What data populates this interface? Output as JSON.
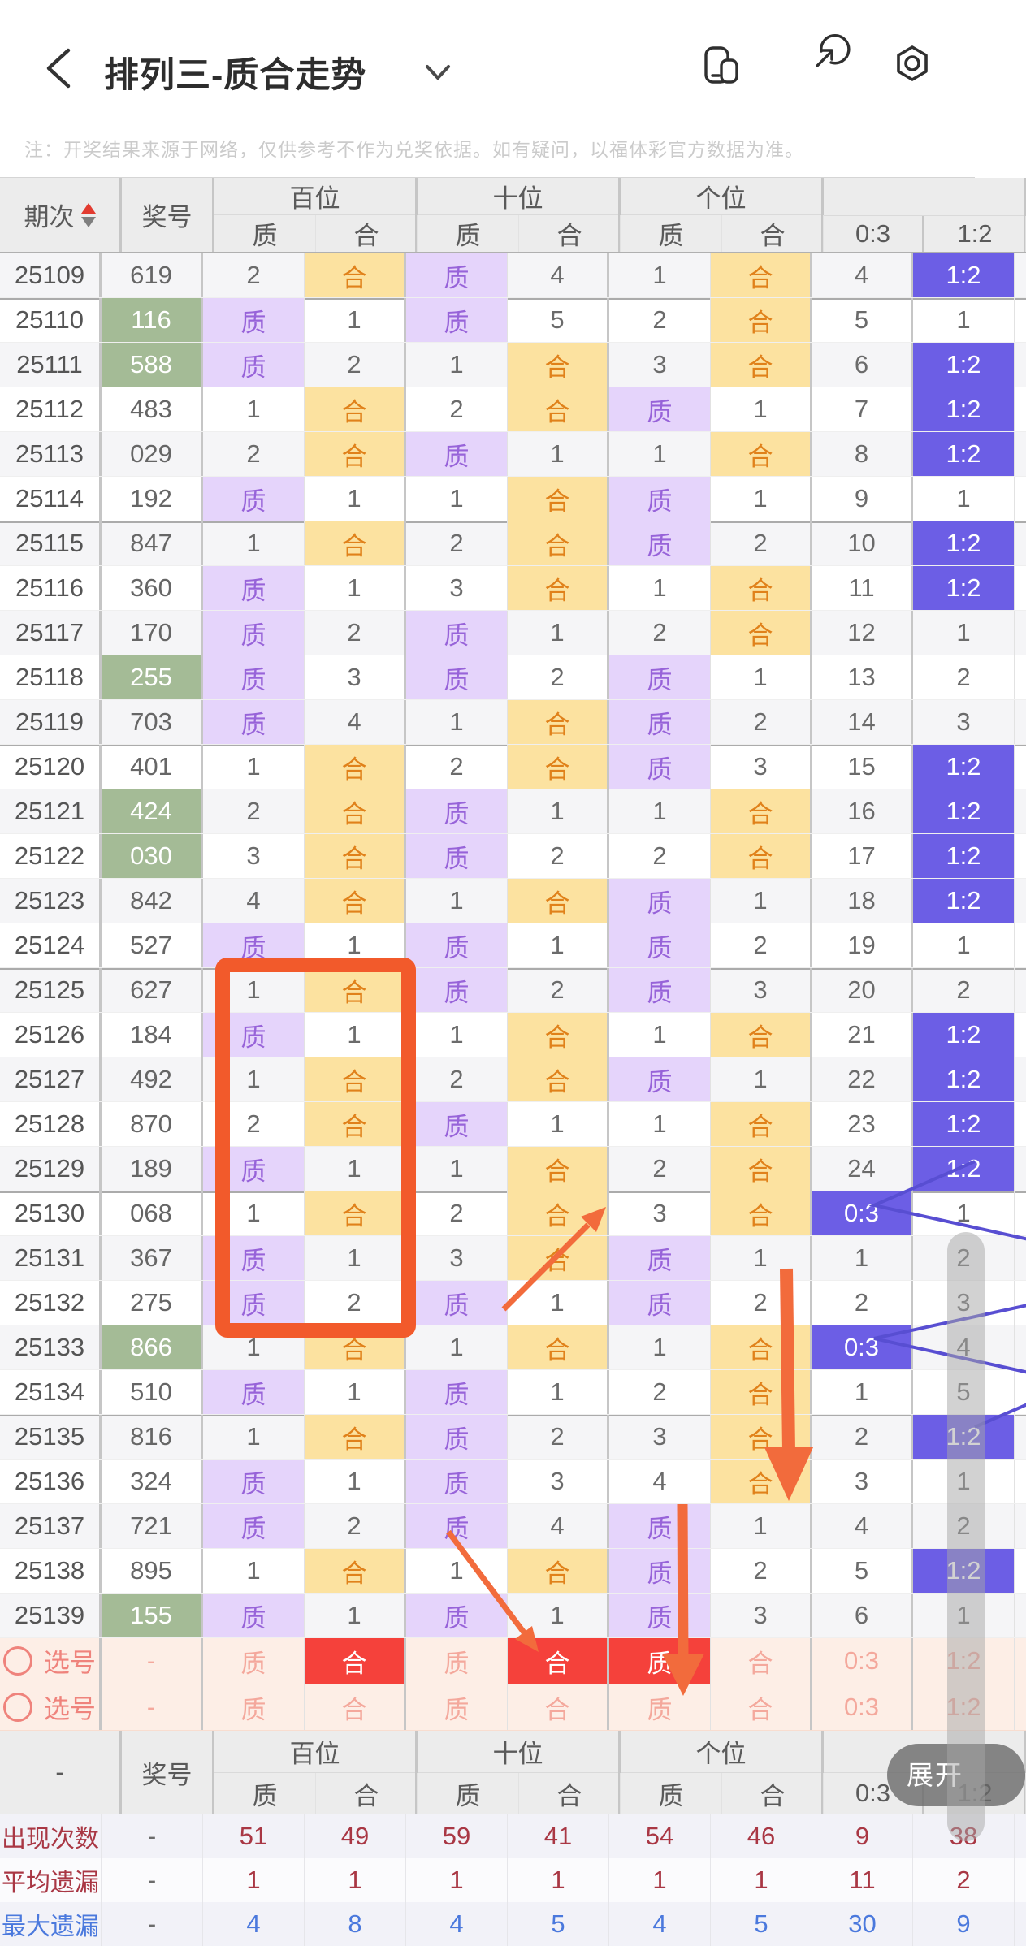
{
  "app": {
    "title": "排列三-质合走势",
    "expand_label": "展开",
    "icons": [
      "back-icon",
      "chevron-down-icon",
      "overlapping-windows-icon",
      "share-icon",
      "settings-nut-icon"
    ]
  },
  "notice": "注：开奖结果来源于网络，仅供参考不作为兑奖依据。如有疑问，以福体彩官方数据为准。",
  "colors": {
    "zhi_purple_bg": "#e5d4fb",
    "zhi_purple_text": "#9763d9",
    "he_orange_bg": "#fce2a0",
    "he_orange_text": "#e0811a",
    "ratio_hit_blue": "#6c5ee5",
    "pair_green": "#a4bb96",
    "select_red": "#f5413b",
    "select_row_pink": "#fdeee6",
    "annotation_orange": "#f25a2b",
    "trend_line_blue": "#584ed2",
    "summary_red": "#a93744",
    "summary_blue": "#4b79dd"
  },
  "table": {
    "header": {
      "period": "期次",
      "number": "奖号",
      "groups": [
        {
          "label": "百位",
          "subs": [
            "质",
            "合"
          ]
        },
        {
          "label": "十位",
          "subs": [
            "质",
            "合"
          ]
        },
        {
          "label": "个位",
          "subs": [
            "质",
            "合"
          ]
        },
        {
          "label": "",
          "subs": [
            "0:3",
            "1:2"
          ]
        }
      ]
    },
    "rows": [
      {
        "period": "25109",
        "number": "619",
        "green": false,
        "cells": [
          "2",
          "合",
          "质",
          "4",
          "1",
          "合",
          "4",
          "1:2"
        ]
      },
      {
        "period": "25110",
        "number": "116",
        "green": true,
        "cells": [
          "质",
          "1",
          "质",
          "5",
          "2",
          "合",
          "5",
          "1"
        ]
      },
      {
        "period": "25111",
        "number": "588",
        "green": true,
        "cells": [
          "质",
          "2",
          "1",
          "合",
          "3",
          "合",
          "6",
          "1:2"
        ]
      },
      {
        "period": "25112",
        "number": "483",
        "green": false,
        "cells": [
          "1",
          "合",
          "2",
          "合",
          "质",
          "1",
          "7",
          "1:2"
        ]
      },
      {
        "period": "25113",
        "number": "029",
        "green": false,
        "cells": [
          "2",
          "合",
          "质",
          "1",
          "1",
          "合",
          "8",
          "1:2"
        ]
      },
      {
        "period": "25114",
        "number": "192",
        "green": false,
        "cells": [
          "质",
          "1",
          "1",
          "合",
          "质",
          "1",
          "9",
          "1"
        ]
      },
      {
        "period": "25115",
        "number": "847",
        "green": false,
        "cells": [
          "1",
          "合",
          "2",
          "合",
          "质",
          "2",
          "10",
          "1:2"
        ]
      },
      {
        "period": "25116",
        "number": "360",
        "green": false,
        "cells": [
          "质",
          "1",
          "3",
          "合",
          "1",
          "合",
          "11",
          "1:2"
        ]
      },
      {
        "period": "25117",
        "number": "170",
        "green": false,
        "cells": [
          "质",
          "2",
          "质",
          "1",
          "2",
          "合",
          "12",
          "1"
        ]
      },
      {
        "period": "25118",
        "number": "255",
        "green": true,
        "cells": [
          "质",
          "3",
          "质",
          "2",
          "质",
          "1",
          "13",
          "2"
        ]
      },
      {
        "period": "25119",
        "number": "703",
        "green": false,
        "cells": [
          "质",
          "4",
          "1",
          "合",
          "质",
          "2",
          "14",
          "3"
        ]
      },
      {
        "period": "25120",
        "number": "401",
        "green": false,
        "cells": [
          "1",
          "合",
          "2",
          "合",
          "质",
          "3",
          "15",
          "1:2"
        ]
      },
      {
        "period": "25121",
        "number": "424",
        "green": true,
        "cells": [
          "2",
          "合",
          "质",
          "1",
          "1",
          "合",
          "16",
          "1:2"
        ]
      },
      {
        "period": "25122",
        "number": "030",
        "green": true,
        "cells": [
          "3",
          "合",
          "质",
          "2",
          "2",
          "合",
          "17",
          "1:2"
        ]
      },
      {
        "period": "25123",
        "number": "842",
        "green": false,
        "cells": [
          "4",
          "合",
          "1",
          "合",
          "质",
          "1",
          "18",
          "1:2"
        ]
      },
      {
        "period": "25124",
        "number": "527",
        "green": false,
        "cells": [
          "质",
          "1",
          "质",
          "1",
          "质",
          "2",
          "19",
          "1"
        ]
      },
      {
        "period": "25125",
        "number": "627",
        "green": false,
        "cells": [
          "1",
          "合",
          "质",
          "2",
          "质",
          "3",
          "20",
          "2"
        ]
      },
      {
        "period": "25126",
        "number": "184",
        "green": false,
        "cells": [
          "质",
          "1",
          "1",
          "合",
          "1",
          "合",
          "21",
          "1:2"
        ]
      },
      {
        "period": "25127",
        "number": "492",
        "green": false,
        "cells": [
          "1",
          "合",
          "2",
          "合",
          "质",
          "1",
          "22",
          "1:2"
        ]
      },
      {
        "period": "25128",
        "number": "870",
        "green": false,
        "cells": [
          "2",
          "合",
          "质",
          "1",
          "1",
          "合",
          "23",
          "1:2"
        ]
      },
      {
        "period": "25129",
        "number": "189",
        "green": false,
        "cells": [
          "质",
          "1",
          "1",
          "合",
          "2",
          "合",
          "24",
          "1:2"
        ]
      },
      {
        "period": "25130",
        "number": "068",
        "green": false,
        "cells": [
          "1",
          "合",
          "2",
          "合",
          "3",
          "合",
          "0:3",
          "1"
        ]
      },
      {
        "period": "25131",
        "number": "367",
        "green": false,
        "cells": [
          "质",
          "1",
          "3",
          "合",
          "质",
          "1",
          "1",
          "2"
        ]
      },
      {
        "period": "25132",
        "number": "275",
        "green": false,
        "cells": [
          "质",
          "2",
          "质",
          "1",
          "质",
          "2",
          "2",
          "3"
        ]
      },
      {
        "period": "25133",
        "number": "866",
        "green": true,
        "cells": [
          "1",
          "合",
          "1",
          "合",
          "1",
          "合",
          "0:3",
          "4"
        ]
      },
      {
        "period": "25134",
        "number": "510",
        "green": false,
        "cells": [
          "质",
          "1",
          "质",
          "1",
          "2",
          "合",
          "1",
          "5"
        ]
      },
      {
        "period": "25135",
        "number": "816",
        "green": false,
        "cells": [
          "1",
          "合",
          "质",
          "2",
          "3",
          "合",
          "2",
          "1:2"
        ]
      },
      {
        "period": "25136",
        "number": "324",
        "green": false,
        "cells": [
          "质",
          "1",
          "质",
          "3",
          "4",
          "合",
          "3",
          "1"
        ]
      },
      {
        "period": "25137",
        "number": "721",
        "green": false,
        "cells": [
          "质",
          "2",
          "质",
          "4",
          "质",
          "1",
          "4",
          "2"
        ]
      },
      {
        "period": "25138",
        "number": "895",
        "green": false,
        "cells": [
          "1",
          "合",
          "1",
          "合",
          "质",
          "2",
          "5",
          "1:2"
        ]
      },
      {
        "period": "25139",
        "number": "155",
        "green": true,
        "cells": [
          "质",
          "1",
          "质",
          "1",
          "质",
          "3",
          "6",
          "1"
        ]
      }
    ],
    "select_rows": [
      {
        "label": "选号",
        "number": "-",
        "cells": [
          "质",
          "合",
          "质",
          "合",
          "质",
          "合",
          "0:3",
          "1:2"
        ],
        "red_indices": [
          1,
          3,
          4
        ]
      },
      {
        "label": "选号",
        "number": "-",
        "cells": [
          "质",
          "合",
          "质",
          "合",
          "质",
          "合",
          "0:3",
          "1:2"
        ],
        "red_indices": []
      }
    ],
    "bottom_header": {
      "period": "-",
      "number": "奖号",
      "groups": [
        {
          "label": "百位",
          "subs": [
            "质",
            "合"
          ]
        },
        {
          "label": "十位",
          "subs": [
            "质",
            "合"
          ]
        },
        {
          "label": "个位",
          "subs": [
            "质",
            "合"
          ]
        },
        {
          "label": "",
          "subs": [
            "0:3",
            "1:2"
          ]
        }
      ]
    },
    "summary": [
      {
        "label": "出现次数",
        "number": "-",
        "style": "red",
        "values": [
          "51",
          "49",
          "59",
          "41",
          "54",
          "46",
          "9",
          "38"
        ]
      },
      {
        "label": "平均遗漏",
        "number": "-",
        "style": "red",
        "values": [
          "1",
          "1",
          "1",
          "1",
          "1",
          "1",
          "11",
          "2"
        ]
      },
      {
        "label": "最大遗漏",
        "number": "-",
        "style": "blue",
        "values": [
          "4",
          "8",
          "4",
          "5",
          "4",
          "5",
          "30",
          "9"
        ]
      }
    ]
  }
}
